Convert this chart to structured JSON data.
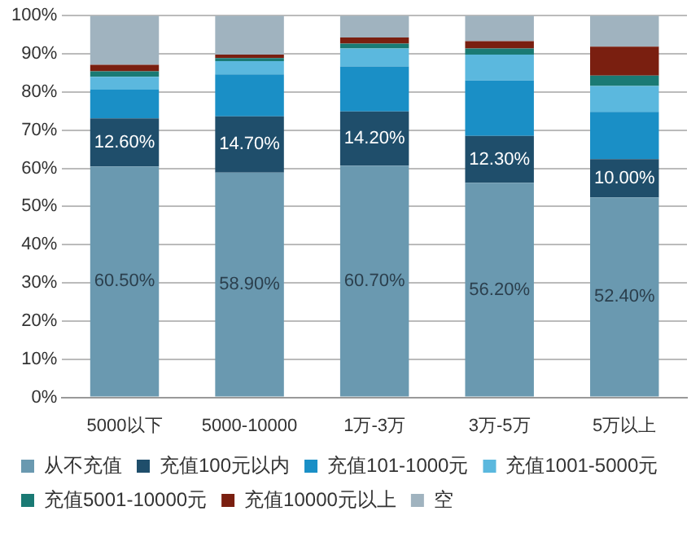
{
  "chart_data": {
    "type": "bar",
    "stacked": true,
    "categories": [
      "5000以下",
      "5000-10000",
      "1万-3万",
      "3万-5万",
      "5万以上"
    ],
    "series": [
      {
        "name": "从不充值",
        "color": "#6a99b0",
        "values": [
          60.5,
          58.9,
          60.7,
          56.2,
          52.4
        ],
        "value_labels": [
          "60.50%",
          "58.90%",
          "60.70%",
          "56.20%",
          "52.40%"
        ]
      },
      {
        "name": "充值100元以内",
        "color": "#1f4e6b",
        "values": [
          12.6,
          14.7,
          14.2,
          12.3,
          10.0
        ],
        "value_labels": [
          "12.60%",
          "14.70%",
          "14.20%",
          "12.30%",
          "10.00%"
        ]
      },
      {
        "name": "充值101-1000元",
        "color": "#1a8fc6",
        "values": [
          7.5,
          11.0,
          11.8,
          14.5,
          12.4
        ]
      },
      {
        "name": "充值1001-5000元",
        "color": "#5bb8de",
        "values": [
          3.4,
          3.5,
          4.7,
          6.8,
          6.8
        ]
      },
      {
        "name": "充值5001-10000元",
        "color": "#1a7a74",
        "values": [
          1.4,
          0.8,
          1.3,
          1.6,
          2.7
        ]
      },
      {
        "name": "充值10000元以上",
        "color": "#7a1f10",
        "values": [
          1.7,
          0.9,
          1.6,
          1.9,
          7.6
        ]
      },
      {
        "name": "空",
        "color": "#a0b3bf",
        "values": [
          12.9,
          10.2,
          5.7,
          6.7,
          8.1
        ]
      }
    ],
    "ylim": [
      0,
      100
    ],
    "yticks": [
      {
        "value": 0,
        "label": "0%"
      },
      {
        "value": 10,
        "label": "10%"
      },
      {
        "value": 20,
        "label": "20%"
      },
      {
        "value": 30,
        "label": "30%"
      },
      {
        "value": 40,
        "label": "40%"
      },
      {
        "value": 50,
        "label": "50%"
      },
      {
        "value": 60,
        "label": "60%"
      },
      {
        "value": 70,
        "label": "70%"
      },
      {
        "value": 80,
        "label": "80%"
      },
      {
        "value": 90,
        "label": "90%"
      },
      {
        "value": 100,
        "label": "100%"
      }
    ],
    "grid": "y",
    "legend": "bottom"
  }
}
